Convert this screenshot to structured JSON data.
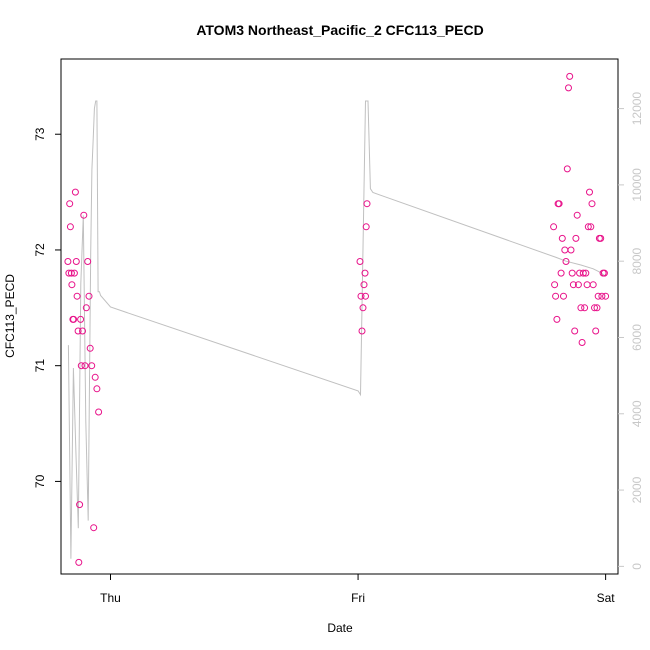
{
  "chart_data": {
    "type": "scatter",
    "title": "ATOM3 Northeast_Pacific_2 CFC113_PECD",
    "xlabel": "Date",
    "ylabel": "CFC113_PECD",
    "x_ticks": [
      "Thu",
      "Fri",
      "Sat"
    ],
    "x_tick_values": [
      0.0,
      1.0,
      2.0
    ],
    "xlim": [
      -0.2,
      2.05
    ],
    "ylim": [
      69.2,
      73.65
    ],
    "y_ticks": [
      70,
      71,
      72,
      73
    ],
    "y2lim": [
      -200,
      13300
    ],
    "y2_ticks": [
      0,
      2000,
      4000,
      6000,
      8000,
      10000,
      12000
    ],
    "grid": false,
    "colors": {
      "points": "#e8128a",
      "secondary_line": "#c0c0c0",
      "right_axis": "#c8c8c8"
    },
    "series": [
      {
        "type": "scatter",
        "axis": "left",
        "x": [
          -0.172,
          -0.168,
          -0.165,
          -0.162,
          -0.158,
          -0.156,
          -0.152,
          -0.149,
          -0.146,
          -0.142,
          -0.138,
          -0.135,
          -0.131,
          -0.128,
          -0.125,
          -0.121,
          -0.118,
          -0.113,
          -0.108,
          -0.103,
          -0.098,
          -0.092,
          -0.087,
          -0.082,
          -0.076,
          -0.068,
          -0.062,
          -0.055,
          -0.048,
          1.008,
          1.012,
          1.016,
          1.02,
          1.024,
          1.028,
          1.03,
          1.033,
          1.036,
          1.79,
          1.794,
          1.798,
          1.803,
          1.808,
          1.812,
          1.82,
          1.825,
          1.83,
          1.835,
          1.84,
          1.845,
          1.85,
          1.855,
          1.86,
          1.865,
          1.87,
          1.875,
          1.88,
          1.885,
          1.89,
          1.895,
          1.9,
          1.905,
          1.91,
          1.915,
          1.92,
          1.925,
          1.93,
          1.935,
          1.94,
          1.945,
          1.95,
          1.955,
          1.96,
          1.965,
          1.97,
          1.975,
          1.98,
          1.985,
          1.99,
          1.995,
          2.0
        ],
        "y": [
          71.9,
          71.8,
          72.4,
          72.2,
          71.8,
          71.7,
          71.4,
          71.4,
          71.8,
          72.5,
          71.9,
          71.6,
          71.3,
          69.3,
          69.8,
          71.4,
          71.0,
          71.3,
          72.3,
          71.0,
          71.5,
          71.9,
          71.6,
          71.15,
          71.0,
          69.6,
          70.9,
          70.8,
          70.6,
          71.9,
          71.6,
          71.3,
          71.5,
          71.7,
          71.8,
          71.6,
          72.2,
          72.4,
          72.2,
          71.7,
          71.6,
          71.4,
          72.4,
          72.4,
          71.8,
          72.1,
          71.6,
          72.0,
          71.9,
          72.7,
          73.4,
          73.5,
          72.0,
          71.8,
          71.7,
          71.3,
          72.1,
          72.3,
          71.7,
          71.8,
          71.5,
          71.2,
          71.8,
          71.5,
          71.8,
          71.7,
          72.2,
          72.5,
          72.2,
          72.4,
          71.7,
          71.5,
          71.3,
          71.5,
          71.6,
          72.1,
          72.1,
          71.6,
          71.8,
          71.8,
          71.6
        ]
      },
      {
        "type": "line",
        "axis": "right",
        "x": [
          -0.17,
          -0.16,
          -0.15,
          -0.14,
          -0.13,
          -0.12,
          -0.11,
          -0.1,
          -0.09,
          -0.08,
          -0.075,
          -0.07,
          -0.065,
          -0.06,
          -0.055,
          -0.05,
          -0.045,
          -0.04,
          0.0,
          1.0,
          1.01,
          1.03,
          1.04,
          1.05,
          1.06,
          1.8,
          1.84,
          1.9,
          1.95,
          1.98,
          2.0
        ],
        "y": [
          5800,
          200,
          5200,
          3000,
          1000,
          7400,
          9200,
          3800,
          1200,
          8200,
          10400,
          11200,
          12000,
          12200,
          12200,
          7200,
          7200,
          7100,
          6800,
          4600,
          4500,
          12200,
          12200,
          9900,
          9800,
          8100,
          8000,
          7900,
          7800,
          7700,
          7600
        ]
      }
    ]
  }
}
